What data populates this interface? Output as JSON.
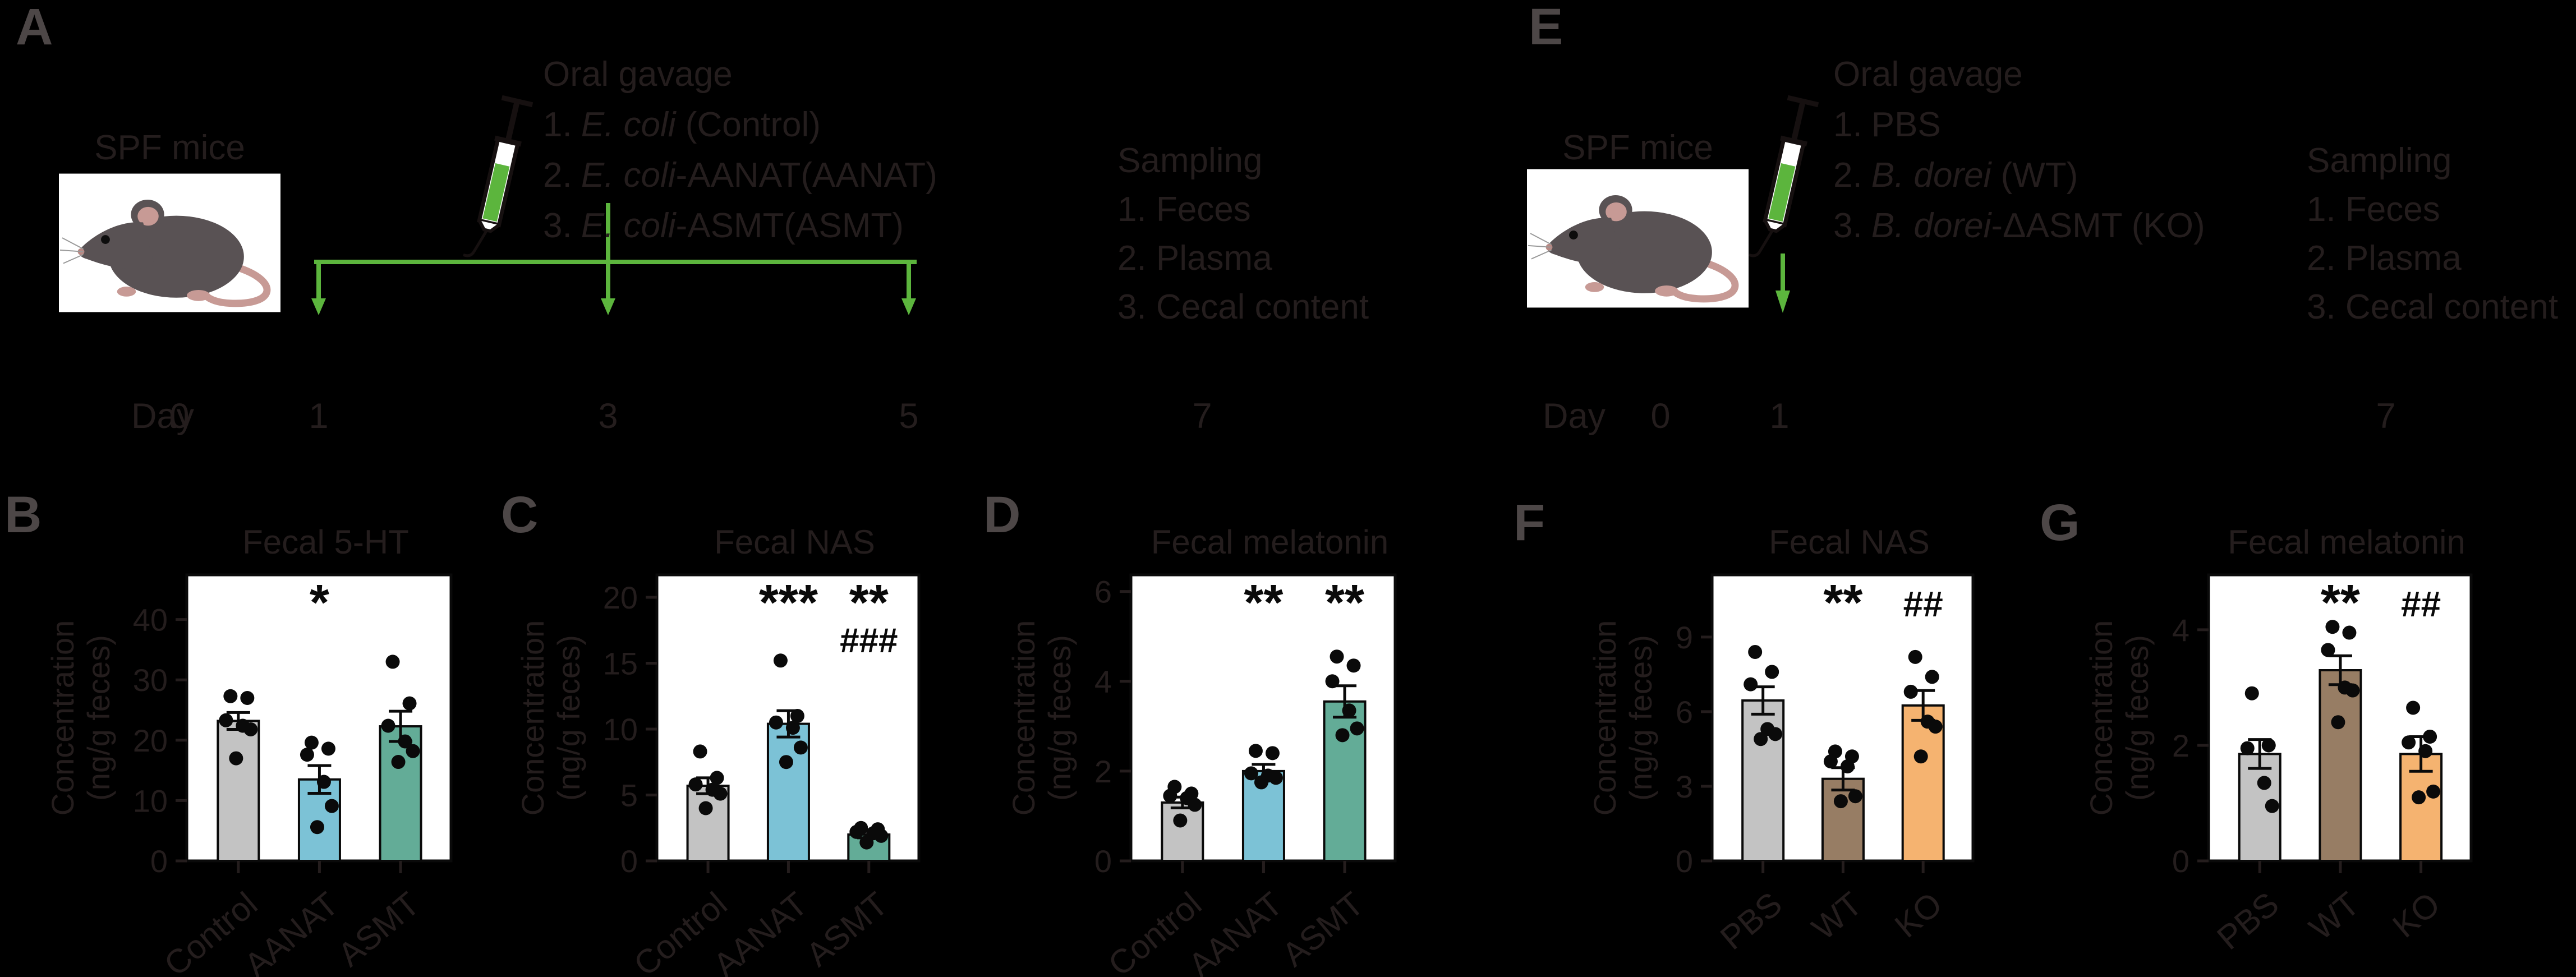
{
  "colors": {
    "background": "#000000",
    "text": "#241d1d",
    "panel_letter": "#4d4747",
    "green": "#5cb53d",
    "plot_background": "#ffffff",
    "axis_black": "#0a0a0a",
    "bar_gray": "#c3c3c3",
    "bar_blue": "#7cc2d6",
    "bar_teal": "#63ac97",
    "bar_brown": "#977d64",
    "bar_orange": "#f5b370",
    "mouse_body": "#595254",
    "mouse_pink": "#c79a95"
  },
  "panel_a": {
    "letter": "A",
    "spf_label": "SPF mice",
    "gavage_title": "Oral gavage",
    "gavage_items": [
      {
        "num": "1.",
        "species": "E. coli",
        "rest": " (Control)"
      },
      {
        "num": "2.",
        "species": "E. coli",
        "rest": "-AANAT(AANAT)"
      },
      {
        "num": "3.",
        "species": "E. coli",
        "rest": "-ASMT(ASMT)"
      }
    ],
    "sampling_title": "Sampling",
    "sampling_items": [
      "1. Feces",
      "2. Plasma",
      "3. Cecal content"
    ],
    "day_label": "Day",
    "day_ticks": [
      "0",
      "1",
      "3",
      "5",
      "7"
    ]
  },
  "panel_e": {
    "letter": "E",
    "spf_label": "SPF mice",
    "gavage_title": "Oral gavage",
    "gavage_items": [
      {
        "num": "1.",
        "species": "",
        "rest": "PBS"
      },
      {
        "num": "2.",
        "species": "B. dorei",
        "rest": " (WT)"
      },
      {
        "num": "3.",
        "species": "B. dorei",
        "rest": "-ΔASMT (KO)"
      }
    ],
    "sampling_title": "Sampling",
    "sampling_items": [
      "1. Feces",
      "2. Plasma",
      "3. Cecal content"
    ],
    "day_label": "Day",
    "day_ticks": [
      "0",
      "1",
      "7"
    ]
  },
  "chart_data": [
    {
      "panel_label": "B",
      "type": "bar",
      "title": "Fecal 5-HT",
      "ylabel_lines": [
        "Concentration",
        "(ng/g feces)"
      ],
      "yticks": [
        0,
        10,
        20,
        30,
        40
      ],
      "ylim": [
        0,
        47.4
      ],
      "categories": [
        "Control",
        "AANAT",
        "ASMT"
      ],
      "series": [
        {
          "name": "Control",
          "color": "#c3c3c3",
          "mean": 23.2,
          "sem": 1.4,
          "sig": "",
          "sig2": "",
          "points": [
            27.3,
            27.0,
            23.3,
            22.4,
            21.8,
            17.0
          ]
        },
        {
          "name": "AANAT",
          "color": "#7cc2d6",
          "mean": 13.5,
          "sem": 2.3,
          "sig": "*",
          "sig2": "",
          "points": [
            19.6,
            18.6,
            17.6,
            13.1,
            9.1,
            5.6
          ]
        },
        {
          "name": "ASMT",
          "color": "#63ac97",
          "mean": 22.3,
          "sem": 2.5,
          "sig": "",
          "sig2": "",
          "points": [
            33.0,
            26.1,
            22.4,
            19.8,
            18.2,
            16.4
          ]
        }
      ]
    },
    {
      "panel_label": "C",
      "type": "bar",
      "title": "Fecal NAS",
      "ylabel_lines": [
        "Concentration",
        "(ng/g feces)"
      ],
      "yticks": [
        0,
        5,
        10,
        15,
        20
      ],
      "ylim": [
        0,
        21.7
      ],
      "categories": [
        "Control",
        "AANAT",
        "ASMT"
      ],
      "series": [
        {
          "name": "Control",
          "color": "#c3c3c3",
          "mean": 5.7,
          "sem": 0.6,
          "sig": "",
          "sig2": "",
          "points": [
            8.3,
            6.3,
            5.8,
            5.4,
            5.1,
            4.0
          ]
        },
        {
          "name": "AANAT",
          "color": "#7cc2d6",
          "mean": 10.4,
          "sem": 1.0,
          "sig": "***",
          "sig2": "",
          "points": [
            15.2,
            11.0,
            10.5,
            10.1,
            8.6,
            7.5
          ]
        },
        {
          "name": "ASMT",
          "color": "#63ac97",
          "mean": 2.0,
          "sem": 0.25,
          "sig": "**",
          "sig2": "###",
          "points": [
            2.5,
            2.4,
            2.2,
            2.1,
            1.9,
            1.4
          ]
        }
      ]
    },
    {
      "panel_label": "D",
      "type": "bar",
      "title": "Fecal melatonin",
      "ylabel_lines": [
        "Concentration",
        "(ng/g feces)"
      ],
      "yticks": [
        0,
        2,
        4,
        6
      ],
      "ylim": [
        0,
        6.37
      ],
      "categories": [
        "Control",
        "AANAT",
        "ASMT"
      ],
      "series": [
        {
          "name": "Control",
          "color": "#c3c3c3",
          "mean": 1.3,
          "sem": 0.12,
          "sig": "",
          "sig2": "",
          "points": [
            1.65,
            1.5,
            1.45,
            1.4,
            1.25,
            0.9
          ]
        },
        {
          "name": "AANAT",
          "color": "#7cc2d6",
          "mean": 2.0,
          "sem": 0.15,
          "sig": "**",
          "sig2": "",
          "points": [
            2.45,
            2.4,
            1.95,
            1.9,
            1.85,
            1.75
          ]
        },
        {
          "name": "ASMT",
          "color": "#63ac97",
          "mean": 3.55,
          "sem": 0.35,
          "sig": "**",
          "sig2": "",
          "points": [
            4.55,
            4.35,
            4.0,
            3.35,
            2.95,
            2.8
          ]
        }
      ]
    },
    {
      "panel_label": "F",
      "type": "bar",
      "title": "Fecal NAS",
      "ylabel_lines": [
        "Concentration",
        "(ng/g feces)"
      ],
      "yticks": [
        0,
        3,
        6,
        9
      ],
      "ylim": [
        0,
        11.5
      ],
      "categories": [
        "PBS",
        "WT",
        "KO"
      ],
      "series": [
        {
          "name": "PBS",
          "color": "#c3c3c3",
          "mean": 6.45,
          "sem": 0.55,
          "sig": "",
          "sig2": "",
          "points": [
            8.4,
            7.6,
            7.1,
            5.3,
            5.1,
            4.9
          ]
        },
        {
          "name": "WT",
          "color": "#977d64",
          "mean": 3.3,
          "sem": 0.45,
          "sig": "**",
          "sig2": "",
          "points": [
            4.4,
            4.2,
            4.0,
            3.8,
            2.6,
            2.4
          ]
        },
        {
          "name": "KO",
          "color": "#f5b370",
          "mean": 6.25,
          "sem": 0.6,
          "sig": "##",
          "sig2": "",
          "points": [
            8.2,
            7.4,
            6.8,
            5.6,
            5.4,
            4.2
          ]
        }
      ]
    },
    {
      "panel_label": "G",
      "type": "bar",
      "title": "Fecal melatonin",
      "ylabel_lines": [
        "Concentration",
        "(ng/g feces)"
      ],
      "yticks": [
        0,
        2,
        4
      ],
      "ylim": [
        0,
        4.95
      ],
      "categories": [
        "PBS",
        "WT",
        "KO"
      ],
      "series": [
        {
          "name": "PBS",
          "color": "#c3c3c3",
          "mean": 1.85,
          "sem": 0.25,
          "sig": "",
          "sig2": "",
          "points": [
            2.9,
            2.0,
            1.95,
            1.35,
            0.95
          ]
        },
        {
          "name": "WT",
          "color": "#977d64",
          "mean": 3.3,
          "sem": 0.25,
          "sig": "**",
          "sig2": "",
          "points": [
            4.05,
            3.95,
            3.65,
            3.0,
            2.95,
            2.4
          ]
        },
        {
          "name": "KO",
          "color": "#f5b370",
          "mean": 1.85,
          "sem": 0.3,
          "sig": "##",
          "sig2": "",
          "points": [
            2.65,
            2.15,
            2.05,
            1.9,
            1.2,
            1.1
          ]
        }
      ]
    }
  ]
}
